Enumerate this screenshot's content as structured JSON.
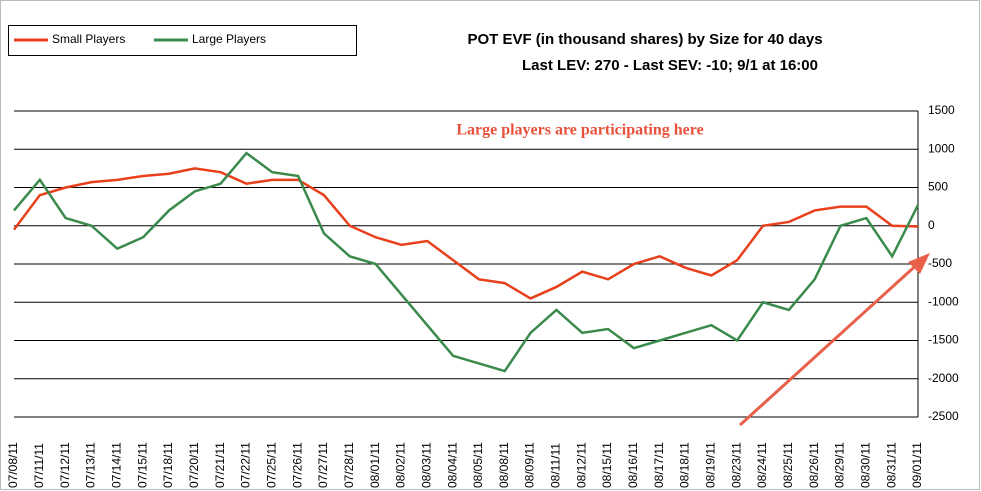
{
  "chart_data": {
    "type": "line",
    "title": "POT EVF (in thousand shares) by Size for 40 days",
    "subtitle": "Last LEV: 270 - Last SEV: -10; 9/1 at 16:00",
    "annotation": "Large players are participating here",
    "categories": [
      "07/08/11",
      "07/11/11",
      "07/12/11",
      "07/13/11",
      "07/14/11",
      "07/15/11",
      "07/18/11",
      "07/20/11",
      "07/21/11",
      "07/22/11",
      "07/25/11",
      "07/26/11",
      "07/27/11",
      "07/28/11",
      "08/01/11",
      "08/02/11",
      "08/03/11",
      "08/04/11",
      "08/05/11",
      "08/08/11",
      "08/09/11",
      "08/11/11",
      "08/12/11",
      "08/15/11",
      "08/16/11",
      "08/17/11",
      "08/18/11",
      "08/19/11",
      "08/23/11",
      "08/24/11",
      "08/25/11",
      "08/26/11",
      "08/29/11",
      "08/30/11",
      "08/31/11",
      "09/01/11"
    ],
    "series": [
      {
        "name": "Small Players",
        "color": "#e8401c",
        "values": [
          -50,
          400,
          500,
          570,
          600,
          650,
          680,
          750,
          700,
          550,
          600,
          600,
          400,
          0,
          -150,
          -250,
          -200,
          -450,
          -700,
          -750,
          -950,
          -800,
          -600,
          -700,
          -500,
          -400,
          -550,
          -650,
          -450,
          0,
          50,
          200,
          250,
          250,
          0,
          -10
        ]
      },
      {
        "name": "Large Players",
        "color": "#3a8a4c",
        "values": [
          200,
          600,
          100,
          0,
          -300,
          -150,
          200,
          450,
          550,
          950,
          700,
          650,
          -100,
          -400,
          -500,
          -900,
          -1300,
          -1700,
          -1800,
          -1900,
          -1400,
          -1100,
          -1400,
          -1350,
          -1600,
          -1500,
          -1400,
          -1300,
          -1500,
          -1000,
          -1100,
          -700,
          0,
          100,
          -400,
          270
        ]
      }
    ],
    "ylim": [
      -2500,
      1500
    ],
    "yticks": [
      -2500,
      -2000,
      -1500,
      -1000,
      -500,
      0,
      500,
      1000,
      1500
    ],
    "grid": true
  }
}
